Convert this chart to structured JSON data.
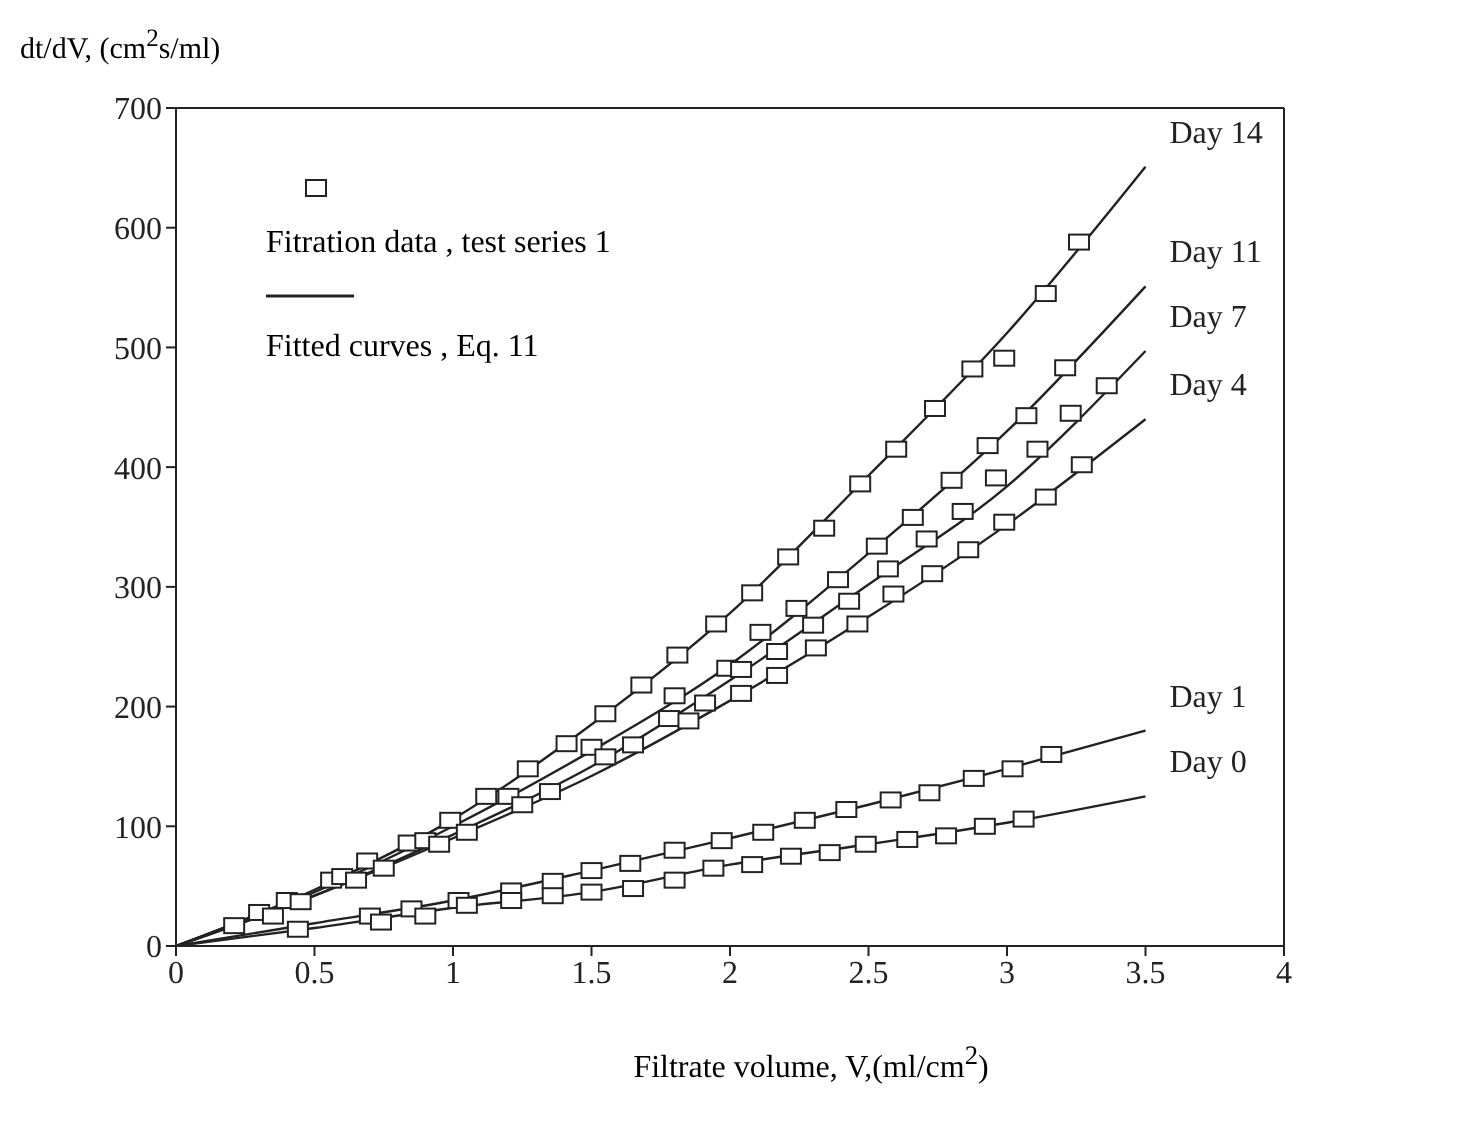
{
  "chart_data": {
    "type": "line",
    "xlabel": "Filtrate volume, V,(ml/cm$^{2}$)",
    "ylabel": "dt/dV, (cm$^{2}$s/ml)",
    "xlim": [
      0,
      4
    ],
    "xticks": [
      0,
      0.5,
      1,
      1.5,
      2,
      2.5,
      3,
      3.5,
      4
    ],
    "ylim": [
      0,
      700
    ],
    "yticks": [
      0,
      100,
      200,
      300,
      400,
      500,
      600,
      700
    ],
    "legend": "top left",
    "annotations": [
      "Fitted curves , Eq. 11"
    ],
    "series": [
      {
        "type": "scatter",
        "name": "Fitration data , test series 1",
        "color": "#222222",
        "marker": "square",
        "x": [
          0.21,
          0.4,
          0.56,
          0.69,
          0.84,
          0.99,
          1.12,
          1.27,
          1.41,
          1.55,
          1.68,
          1.81,
          1.95,
          2.08,
          2.21,
          2.34,
          2.47,
          2.6,
          2.74,
          2.875,
          3.14,
          3.26,
          2.99,
          0.3,
          0.6,
          0.9,
          1.2,
          1.5,
          1.8,
          1.99,
          2.11,
          2.24,
          2.39,
          2.53,
          2.66,
          2.8,
          2.93,
          3.07,
          3.21,
          0.35,
          0.65,
          0.95,
          1.25,
          1.55,
          1.78,
          1.91,
          2.04,
          2.17,
          2.3,
          2.43,
          2.57,
          2.71,
          2.84,
          2.96,
          3.11,
          3.23,
          3.36,
          0.45,
          0.75,
          1.05,
          1.35,
          1.65,
          1.85,
          2.04,
          2.17,
          2.31,
          2.46,
          2.59,
          2.73,
          2.86,
          2.99,
          3.14,
          3.27,
          0.7,
          0.85,
          1.02,
          1.21,
          1.36,
          1.5,
          1.64,
          1.8,
          1.97,
          2.12,
          2.27,
          2.42,
          2.58,
          2.72,
          2.88,
          3.02,
          3.16,
          0.44,
          0.74,
          0.9,
          1.05,
          1.21,
          1.36,
          1.5,
          1.65,
          1.8,
          1.94,
          2.08,
          2.22,
          2.36,
          2.49,
          2.64,
          2.78,
          2.92,
          3.06
        ],
        "values": [
          17,
          38,
          55,
          71,
          86,
          105,
          125,
          148,
          169,
          194,
          218,
          243,
          269,
          295,
          325,
          349,
          386,
          415,
          449,
          482,
          545,
          588,
          491,
          28,
          58,
          88,
          125,
          166,
          209,
          232,
          262,
          282,
          306,
          334,
          358,
          389,
          418,
          443,
          483,
          25,
          55,
          85,
          118,
          158,
          190,
          203,
          231,
          246,
          268,
          288,
          315,
          340,
          363,
          391,
          415,
          445,
          468,
          37,
          65,
          95,
          129,
          168,
          188,
          211,
          226,
          249,
          269,
          294,
          311,
          331,
          354,
          375,
          402,
          25,
          31,
          38,
          46,
          54,
          63,
          69,
          80,
          88,
          95,
          105,
          114,
          122,
          128,
          140,
          148,
          160,
          14,
          20,
          25,
          34,
          38,
          42,
          45,
          48,
          55,
          65,
          68,
          75,
          78,
          85,
          89,
          92,
          100,
          106
        ]
      },
      {
        "name": "Day 14",
        "color": "#222222",
        "x": [
          0,
          0.5,
          1,
          1.5,
          2,
          2.5,
          3,
          3.5
        ],
        "values": [
          0,
          47,
          106,
          185,
          278,
          393,
          512,
          651
        ]
      },
      {
        "name": "Day 11",
        "color": "#222222",
        "x": [
          0,
          0.5,
          1,
          1.5,
          2,
          2.5,
          3,
          3.5
        ],
        "values": [
          0,
          45,
          100,
          163,
          235,
          328,
          430,
          551
        ]
      },
      {
        "name": "Day 7",
        "color": "#222222",
        "x": [
          0,
          0.5,
          1,
          1.5,
          2,
          2.5,
          3,
          3.5
        ],
        "values": [
          0,
          42,
          93,
          150,
          222,
          302,
          384,
          497
        ]
      },
      {
        "name": "Day 4",
        "color": "#222222",
        "x": [
          0,
          0.5,
          1,
          1.5,
          2,
          2.5,
          3,
          3.5
        ],
        "values": [
          0,
          42,
          90,
          142,
          205,
          275,
          352,
          440
        ]
      },
      {
        "name": "Day 1",
        "color": "#222222",
        "x": [
          0,
          0.5,
          1,
          1.5,
          2,
          2.5,
          3,
          3.5
        ],
        "values": [
          0,
          19,
          38,
          63,
          90,
          118,
          148,
          180
        ]
      },
      {
        "name": "Day 0",
        "color": "#222222",
        "x": [
          0,
          0.5,
          1,
          1.5,
          2,
          2.5,
          3,
          3.5
        ],
        "values": [
          0,
          15,
          32,
          45,
          68,
          85,
          103,
          125
        ]
      }
    ]
  }
}
